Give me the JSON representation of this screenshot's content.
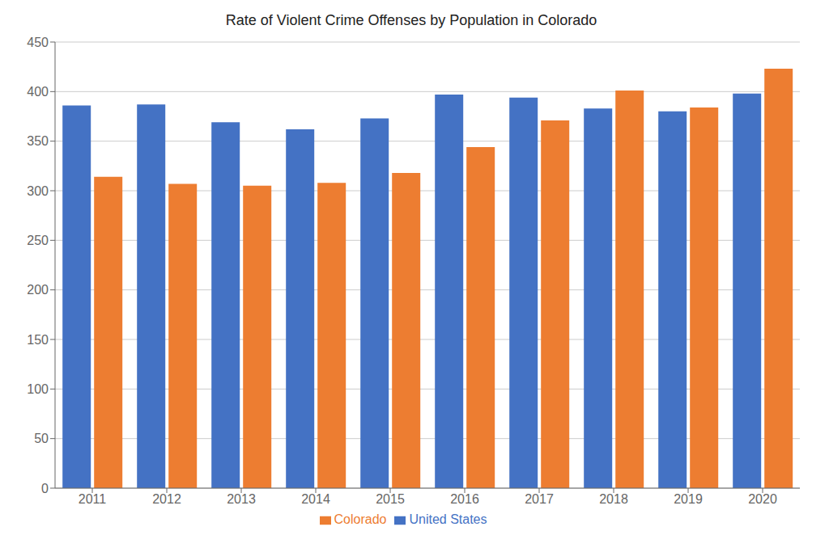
{
  "chart_data": {
    "type": "bar",
    "title": "Rate of Violent Crime Offenses by Population in Colorado",
    "categories": [
      "2011",
      "2012",
      "2013",
      "2014",
      "2015",
      "2016",
      "2017",
      "2018",
      "2019",
      "2020"
    ],
    "series": [
      {
        "name": "United States",
        "color": "#4472C4",
        "values": [
          386,
          387,
          369,
          362,
          373,
          397,
          394,
          383,
          380,
          398
        ]
      },
      {
        "name": "Colorado",
        "color": "#ED7D31",
        "values": [
          314,
          307,
          305,
          308,
          318,
          344,
          371,
          401,
          384,
          423
        ]
      }
    ],
    "ylim": [
      0,
      450
    ],
    "yticks": [
      0,
      50,
      100,
      150,
      200,
      250,
      300,
      350,
      400,
      450
    ],
    "grid": true,
    "legend": "bottom"
  }
}
